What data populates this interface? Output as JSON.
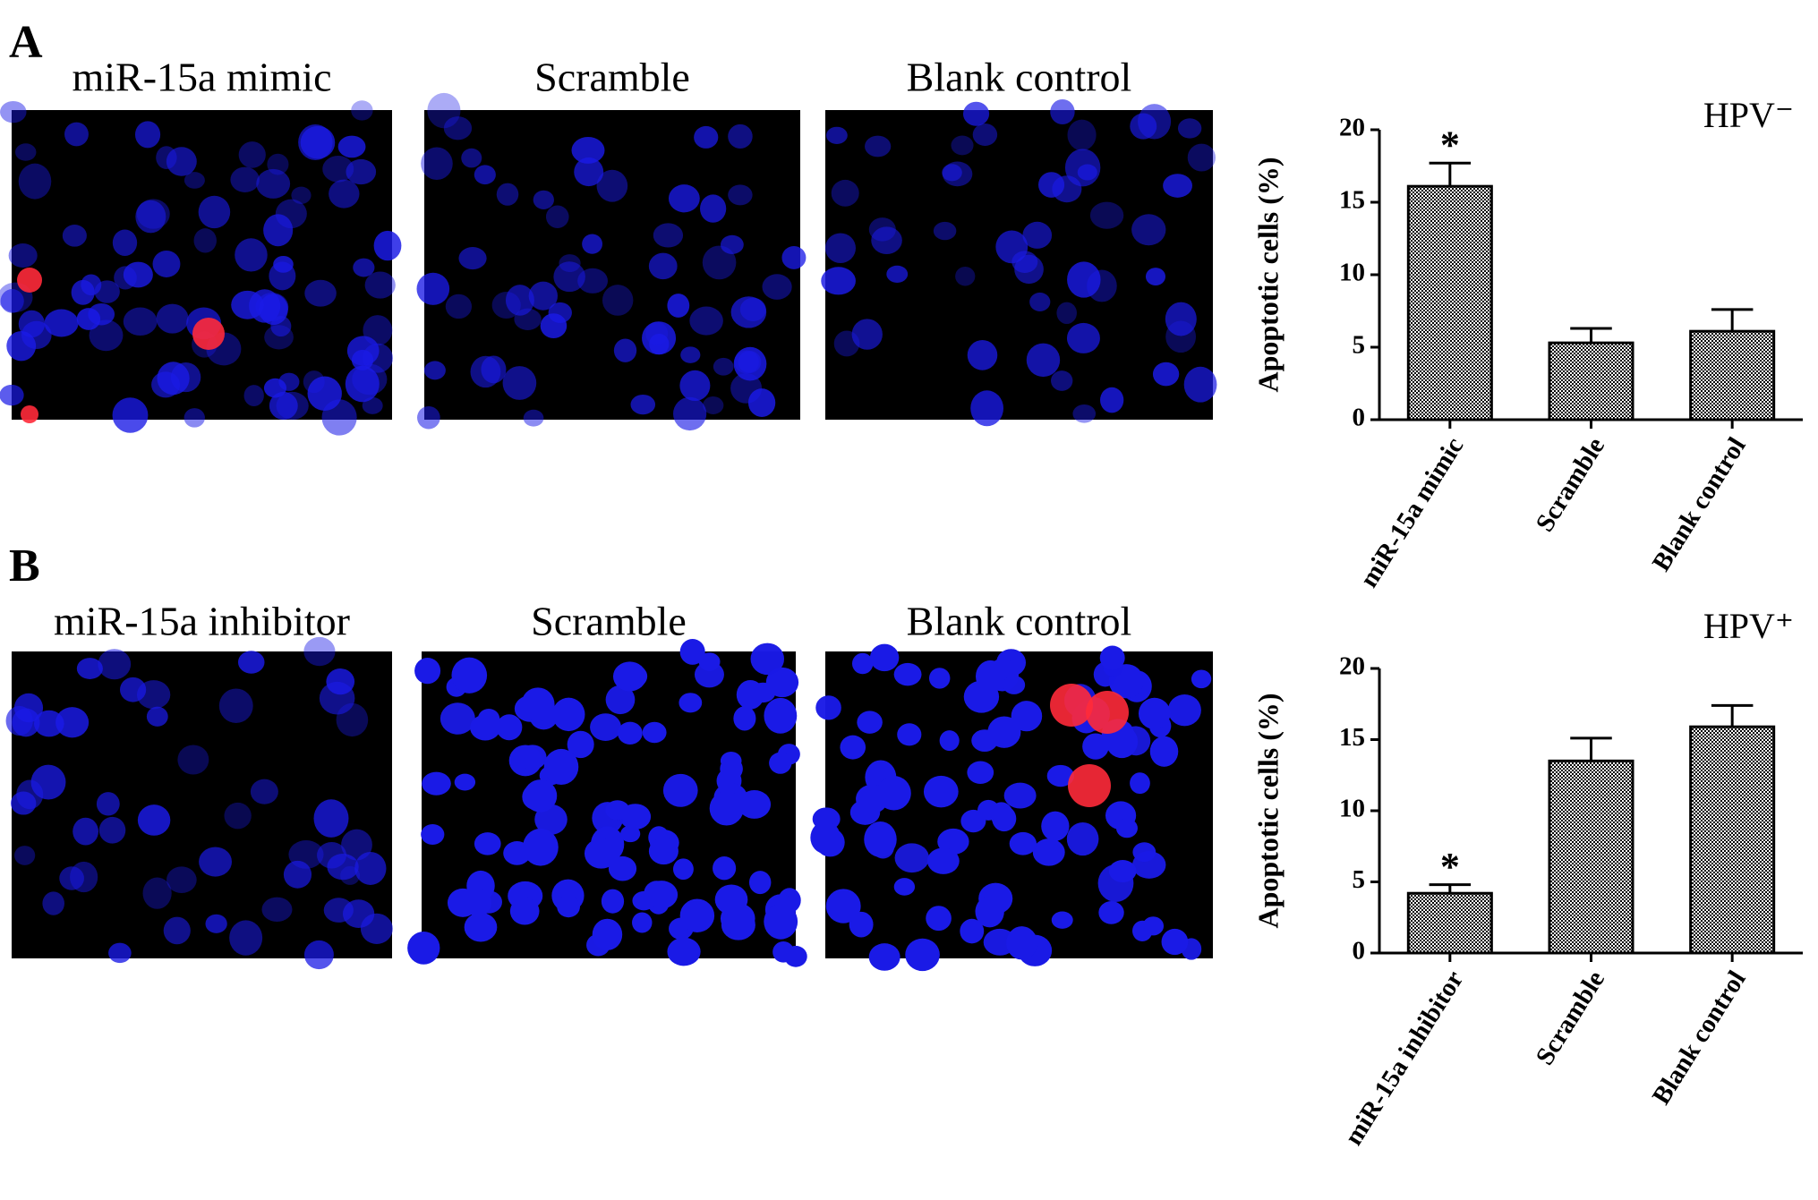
{
  "panels": [
    {
      "label": "A",
      "images": [
        {
          "caption": "miR-15a mimic"
        },
        {
          "caption": "Scramble"
        },
        {
          "caption": "Blank control"
        }
      ]
    },
    {
      "label": "B",
      "images": [
        {
          "caption": "miR-15a inhibitor"
        },
        {
          "caption": "Scramble"
        },
        {
          "caption": "Blank control"
        }
      ]
    }
  ],
  "chart_data": [
    {
      "type": "bar",
      "ylabel": "Apoptotic cells (%)",
      "annotation": "HPV⁻",
      "categories": [
        "miR-15a mimic",
        "Scramble",
        "Blank control"
      ],
      "values": [
        16.1,
        5.3,
        6.1
      ],
      "errors": [
        1.6,
        1.0,
        1.5
      ],
      "significance": [
        {
          "text": "*",
          "category": "miR-15a mimic"
        }
      ],
      "ylim": [
        0,
        20
      ],
      "yticks": [
        0,
        5,
        10,
        15,
        20
      ],
      "color": "#000000"
    },
    {
      "type": "bar",
      "ylabel": "Apoptotic cells (%)",
      "annotation": "HPV⁺",
      "categories": [
        "miR-15a inhibitor",
        "Scramble",
        "Blank control"
      ],
      "values": [
        4.2,
        13.5,
        15.9
      ],
      "errors": [
        0.6,
        1.6,
        1.5
      ],
      "significance": [
        {
          "text": "*",
          "category": "miR-15a inhibitor"
        }
      ],
      "ylim": [
        0,
        20
      ],
      "yticks": [
        0,
        5,
        10,
        15,
        20
      ],
      "color": "#000000"
    }
  ]
}
